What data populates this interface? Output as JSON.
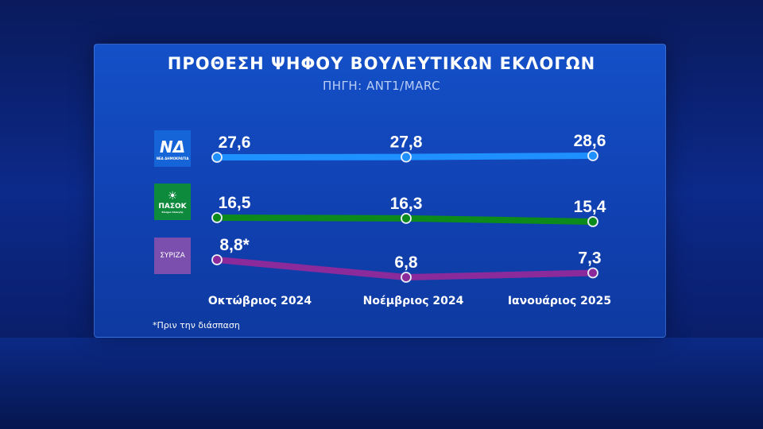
{
  "chart_data": {
    "type": "line",
    "title": "ΠΡΟΘΕΣΗ ΨΗΦΟΥ ΒΟΥΛΕΥΤΙΚΩΝ ΕΚΛΟΓΩΝ",
    "subtitle": "ΠΗΓΗ: ΑΝΤ1/MARC",
    "categories": [
      "Οκτώβριος 2024",
      "Νοέμβριος 2024",
      "Ιανουάριος 2025"
    ],
    "series": [
      {
        "name": "ΝΕΑ ΔΗΜΟΚΡΑΤΙΑ",
        "color": "#1e90ff",
        "values": [
          27.6,
          27.8,
          28.6
        ],
        "labels": [
          "27,6",
          "27,8",
          "28,6"
        ]
      },
      {
        "name": "ΠΑΣΟΚ",
        "color": "#0d8a1c",
        "values": [
          16.5,
          16.3,
          15.4
        ],
        "labels": [
          "16,5",
          "16,3",
          "15,4"
        ]
      },
      {
        "name": "ΣΥΡΙΖΑ",
        "color": "#8b2a9b",
        "values": [
          8.8,
          6.8,
          7.3
        ],
        "labels": [
          "8,8*",
          "6,8",
          "7,3"
        ]
      }
    ],
    "legend": "left, party logos",
    "grid": false
  },
  "logos": [
    {
      "text": "ΝΔ",
      "sub": "ΝΕΑ ΔΗΜΟΚΡΑΤΙΑ",
      "bg": "#1565d8"
    },
    {
      "text": "ΠΑΣΟΚ",
      "sub": "Κίνημα Αλλαγής",
      "bg": "#0d8a3c"
    },
    {
      "text": "ΣΥΡΙΖΑ",
      "sub": "",
      "bg": "#7b4fae"
    }
  ],
  "note": "*Πριν την διάσπαση"
}
